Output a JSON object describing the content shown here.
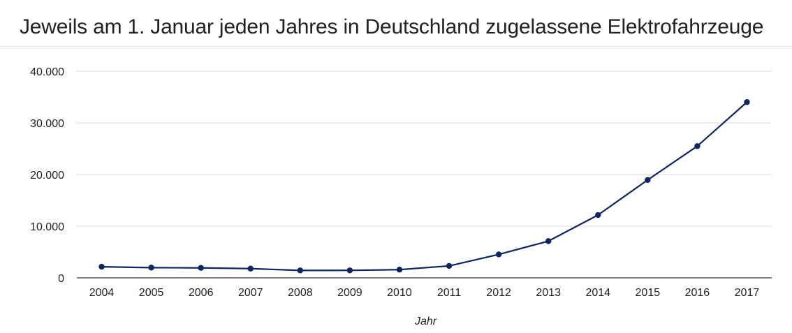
{
  "chart_data": {
    "type": "line",
    "title": "Jeweils am 1. Januar jeden Jahres in Deutschland zugelassene Elektrofahrzeuge",
    "xlabel": "Jahr",
    "ylabel": "",
    "categories": [
      "2004",
      "2005",
      "2006",
      "2007",
      "2008",
      "2009",
      "2010",
      "2011",
      "2012",
      "2013",
      "2014",
      "2015",
      "2016",
      "2017"
    ],
    "series": [
      {
        "values": [
          2150,
          1980,
          1930,
          1790,
          1440,
          1450,
          1590,
          2310,
          4540,
          7110,
          12160,
          18950,
          25500,
          34020
        ]
      }
    ],
    "ylim": [
      0,
      40000
    ],
    "yticks": [
      0,
      10000,
      20000,
      30000,
      40000
    ],
    "ytick_labels": [
      "0",
      "10.000",
      "20.000",
      "30.000",
      "40.000"
    ],
    "grid": true,
    "legend": "none",
    "colors": {
      "line": "#0d2660",
      "grid": "#d9d9d9",
      "axis": "#333333"
    }
  }
}
